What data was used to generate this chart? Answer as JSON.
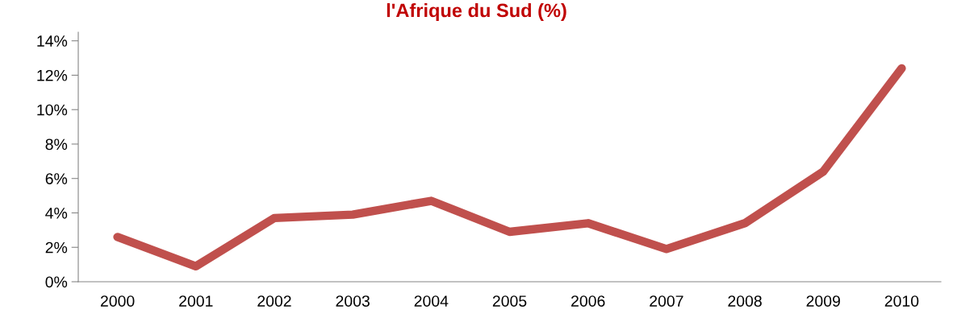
{
  "chart_data": {
    "type": "line",
    "title": "l'Afrique du Sud (%)",
    "categories": [
      "2000",
      "2001",
      "2002",
      "2003",
      "2004",
      "2005",
      "2006",
      "2007",
      "2008",
      "2009",
      "2010"
    ],
    "series": [
      {
        "color": "#c0504d",
        "values": [
          2.6,
          0.9,
          3.7,
          3.9,
          4.7,
          2.9,
          3.4,
          1.9,
          3.4,
          6.4,
          12.4
        ]
      }
    ],
    "ylim": [
      0,
      14.5
    ],
    "yticks": [
      {
        "value": 0,
        "label": "0%"
      },
      {
        "value": 2,
        "label": "2%"
      },
      {
        "value": 4,
        "label": "4%"
      },
      {
        "value": 6,
        "label": "6%"
      },
      {
        "value": 8,
        "label": "8%"
      },
      {
        "value": 10,
        "label": "10%"
      },
      {
        "value": 12,
        "label": "12%"
      },
      {
        "value": 14,
        "label": "14%"
      }
    ],
    "grid": false,
    "marker": "none",
    "line_style": "solid"
  }
}
